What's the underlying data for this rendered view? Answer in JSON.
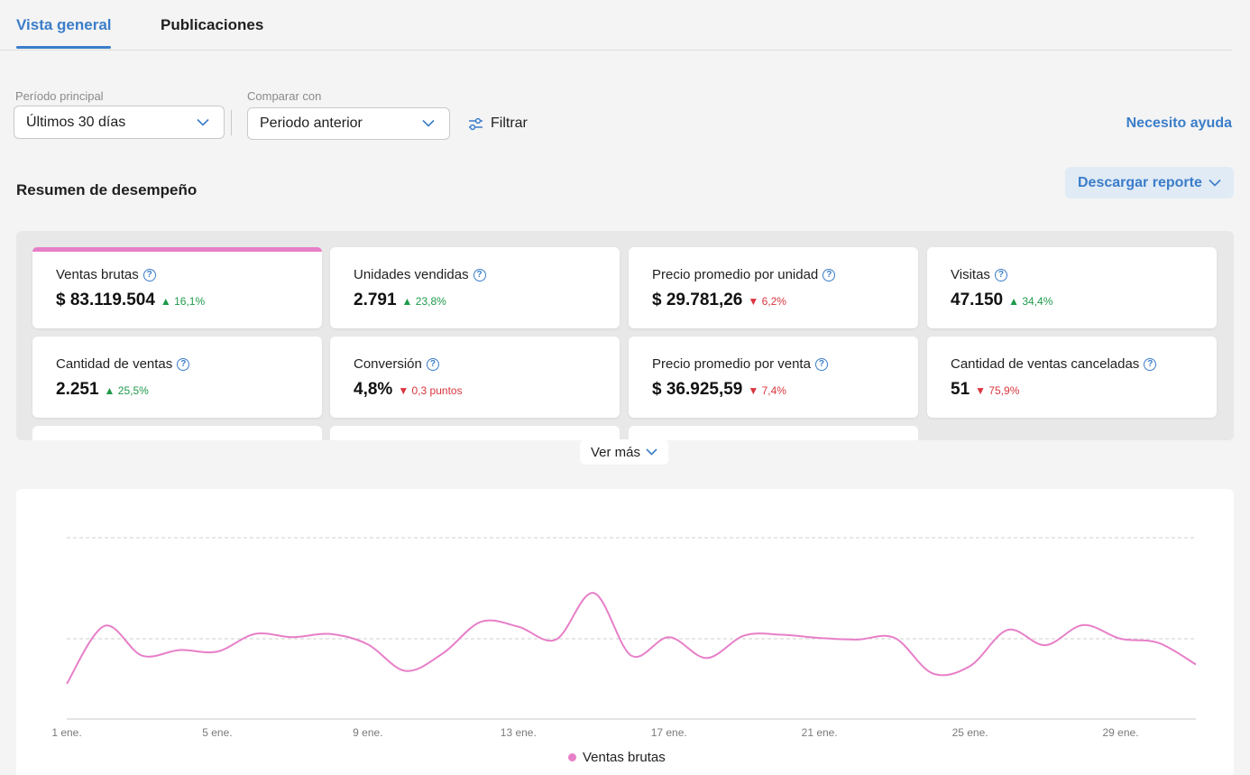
{
  "tabs": [
    {
      "label": "Vista general",
      "active": true
    },
    {
      "label": "Publicaciones",
      "active": false
    }
  ],
  "filters": {
    "main_period": {
      "label": "Período principal",
      "value": "Últimos 30 días"
    },
    "compare": {
      "label": "Comparar con",
      "value": "Periodo anterior"
    },
    "filter_label": "Filtrar",
    "help_label": "Necesito ayuda"
  },
  "summary": {
    "title": "Resumen de desempeño",
    "download_label": "Descargar reporte"
  },
  "metrics": [
    {
      "title": "Ventas brutas",
      "value": "$ 83.119.504",
      "delta": "16,1%",
      "direction": "up",
      "selected": true
    },
    {
      "title": "Unidades vendidas",
      "value": "2.791",
      "delta": "23,8%",
      "direction": "up"
    },
    {
      "title": "Precio promedio por unidad",
      "value": "$ 29.781,26",
      "delta": "6,2%",
      "direction": "down"
    },
    {
      "title": "Visitas",
      "value": "47.150",
      "delta": "34,4%",
      "direction": "up"
    },
    {
      "title": "Cantidad de ventas",
      "value": "2.251",
      "delta": "25,5%",
      "direction": "up"
    },
    {
      "title": "Conversión",
      "value": "4,8%",
      "delta": "0,3 puntos",
      "direction": "down"
    },
    {
      "title": "Precio promedio por venta",
      "value": "$ 36.925,59",
      "delta": "7,4%",
      "direction": "down"
    },
    {
      "title": "Cantidad de ventas canceladas",
      "value": "51",
      "delta": "75,9%",
      "direction": "down"
    }
  ],
  "see_more_label": "Ver más",
  "colors": {
    "accent": "#3b7dc9",
    "series": "#e77fc8",
    "up": "#1e9a4a",
    "down": "#d9363e"
  },
  "chart_data": {
    "type": "line",
    "x": [
      "1 ene.",
      "2 ene.",
      "3 ene.",
      "4 ene.",
      "5 ene.",
      "6 ene.",
      "7 ene.",
      "8 ene.",
      "9 ene.",
      "10 ene.",
      "11 ene.",
      "12 ene.",
      "13 ene.",
      "14 ene.",
      "15 ene.",
      "16 ene.",
      "17 ene.",
      "18 ene.",
      "19 ene.",
      "20 ene.",
      "21 ene.",
      "22 ene.",
      "23 ene.",
      "24 ene.",
      "25 ene.",
      "26 ene.",
      "27 ene.",
      "28 ene.",
      "29 ene.",
      "30 ene.",
      "31 ene."
    ],
    "xticks": [
      "1 ene.",
      "5 ene.",
      "9 ene.",
      "13 ene.",
      "17 ene.",
      "21 ene.",
      "25 ene.",
      "29 ene."
    ],
    "series": [
      {
        "name": "Ventas brutas",
        "values": [
          0.44,
          1.16,
          0.79,
          0.86,
          0.84,
          1.06,
          1.02,
          1.06,
          0.93,
          0.6,
          0.82,
          1.21,
          1.15,
          0.99,
          1.57,
          0.79,
          1.02,
          0.76,
          1.04,
          1.05,
          1.01,
          0.99,
          1.01,
          0.57,
          0.66,
          1.11,
          0.92,
          1.17,
          1.0,
          0.95,
          0.68
        ]
      }
    ],
    "y_gridlines": [
      "mid",
      "top"
    ],
    "yaxis_labels": "none",
    "grid": true,
    "legend": "bottom-center"
  }
}
